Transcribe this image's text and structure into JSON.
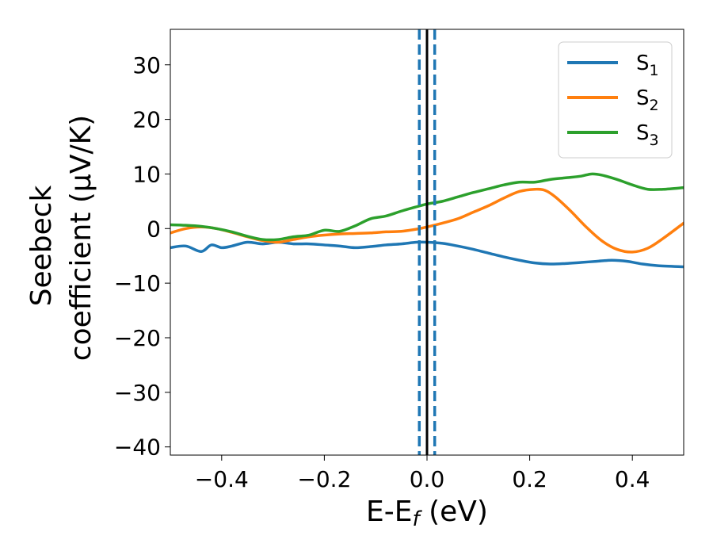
{
  "chart_data": {
    "type": "line",
    "xlabel": "E-E",
    "xlabel_sub": "f",
    "xlabel_unit": " (eV)",
    "ylabel_line1": "Seebeck",
    "ylabel_line2": "coefficient  (μV/K)",
    "xlim": [
      -0.5,
      0.5
    ],
    "ylim": [
      -41.5,
      36.5
    ],
    "xticks": [
      -0.4,
      -0.2,
      0.0,
      0.2,
      0.4
    ],
    "xtick_labels": [
      "−0.4",
      "−0.2",
      "0.0",
      "0.2",
      "0.4"
    ],
    "yticks": [
      -40,
      -30,
      -20,
      -10,
      0,
      10,
      20,
      30
    ],
    "ytick_labels": [
      "−40",
      "−30",
      "−20",
      "−10",
      "0",
      "10",
      "20",
      "30"
    ],
    "grid": false,
    "legend_position": "top-right",
    "vlines": [
      {
        "x": 0.0,
        "style": "solid",
        "color": "#000000"
      },
      {
        "x": -0.015,
        "style": "dashed",
        "color": "#1f77b4"
      },
      {
        "x": 0.015,
        "style": "dashed",
        "color": "#1f77b4"
      }
    ],
    "series": [
      {
        "name": "S",
        "sub": "1",
        "color": "#1f77b4",
        "x": [
          -0.5,
          -0.47,
          -0.44,
          -0.42,
          -0.4,
          -0.38,
          -0.35,
          -0.32,
          -0.29,
          -0.26,
          -0.23,
          -0.2,
          -0.17,
          -0.14,
          -0.11,
          -0.08,
          -0.05,
          -0.02,
          0.0,
          0.03,
          0.06,
          0.09,
          0.12,
          0.15,
          0.18,
          0.21,
          0.24,
          0.27,
          0.3,
          0.33,
          0.36,
          0.39,
          0.42,
          0.45,
          0.5
        ],
        "y": [
          -3.5,
          -3.2,
          -4.2,
          -3.0,
          -3.5,
          -3.2,
          -2.5,
          -2.8,
          -2.5,
          -2.8,
          -2.8,
          -3.0,
          -3.2,
          -3.5,
          -3.3,
          -3.0,
          -2.8,
          -2.5,
          -2.5,
          -2.7,
          -3.2,
          -3.8,
          -4.5,
          -5.2,
          -5.8,
          -6.3,
          -6.5,
          -6.4,
          -6.2,
          -6.0,
          -5.8,
          -6.0,
          -6.5,
          -6.8,
          -7.0
        ]
      },
      {
        "name": "S",
        "sub": "2",
        "color": "#ff7f0e",
        "x": [
          -0.5,
          -0.47,
          -0.44,
          -0.41,
          -0.38,
          -0.35,
          -0.32,
          -0.29,
          -0.26,
          -0.23,
          -0.2,
          -0.17,
          -0.14,
          -0.11,
          -0.08,
          -0.05,
          -0.02,
          0.0,
          0.03,
          0.06,
          0.09,
          0.12,
          0.15,
          0.18,
          0.21,
          0.23,
          0.25,
          0.28,
          0.31,
          0.34,
          0.37,
          0.4,
          0.43,
          0.46,
          0.5
        ],
        "y": [
          -0.8,
          0.0,
          0.3,
          0.0,
          -0.7,
          -1.5,
          -2.2,
          -2.5,
          -2.0,
          -1.5,
          -1.2,
          -1.0,
          -0.9,
          -0.8,
          -0.6,
          -0.5,
          -0.1,
          0.3,
          1.0,
          1.8,
          3.0,
          4.2,
          5.6,
          6.8,
          7.2,
          7.0,
          5.8,
          3.2,
          0.3,
          -2.2,
          -3.8,
          -4.3,
          -3.6,
          -1.8,
          1.0
        ]
      },
      {
        "name": "S",
        "sub": "3",
        "color": "#2ca02c",
        "x": [
          -0.5,
          -0.47,
          -0.44,
          -0.41,
          -0.38,
          -0.35,
          -0.32,
          -0.29,
          -0.26,
          -0.23,
          -0.2,
          -0.17,
          -0.14,
          -0.11,
          -0.08,
          -0.05,
          -0.02,
          0.0,
          0.03,
          0.06,
          0.09,
          0.12,
          0.15,
          0.18,
          0.21,
          0.24,
          0.27,
          0.3,
          0.32,
          0.34,
          0.37,
          0.4,
          0.43,
          0.46,
          0.5
        ],
        "y": [
          0.7,
          0.6,
          0.4,
          0.0,
          -0.6,
          -1.4,
          -2.0,
          -2.0,
          -1.5,
          -1.2,
          -0.3,
          -0.5,
          0.5,
          1.8,
          2.3,
          3.2,
          4.0,
          4.5,
          5.0,
          5.8,
          6.6,
          7.3,
          8.0,
          8.5,
          8.5,
          9.0,
          9.3,
          9.6,
          10.0,
          9.8,
          9.0,
          8.0,
          7.2,
          7.2,
          7.5
        ]
      }
    ]
  }
}
